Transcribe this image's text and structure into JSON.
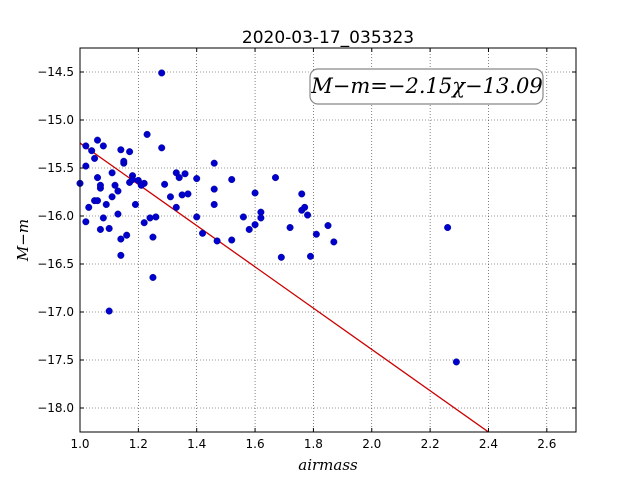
{
  "chart_data": {
    "type": "scatter",
    "title": "2020-03-17_035323",
    "xlabel": "airmass",
    "ylabel": "M−m",
    "xlim": [
      1.0,
      2.7
    ],
    "ylim": [
      -18.25,
      -14.25
    ],
    "y_inverted": true,
    "grid": true,
    "x_ticks": [
      1.0,
      1.2,
      1.4,
      1.6,
      1.8,
      2.0,
      2.2,
      2.4,
      2.6
    ],
    "x_tick_labels": [
      "1.0",
      "1.2",
      "1.4",
      "1.6",
      "1.8",
      "2.0",
      "2.2",
      "2.4",
      "2.6"
    ],
    "y_ticks": [
      -14.5,
      -15.0,
      -15.5,
      -16.0,
      -16.5,
      -17.0,
      -17.5,
      -18.0
    ],
    "y_tick_labels": [
      "−14.5",
      "−15.0",
      "−15.5",
      "−16.0",
      "−16.5",
      "−17.0",
      "−17.5",
      "−18.0"
    ],
    "annotation": {
      "text": "M−m=−2.15χ−13.09",
      "position": "top-right"
    },
    "fit_line": {
      "slope": -2.15,
      "intercept": -13.09,
      "color": "#cc0000"
    },
    "marker_color": "#0000cc",
    "points": [
      {
        "x": 1.0,
        "y": -15.66
      },
      {
        "x": 1.02,
        "y": -15.27
      },
      {
        "x": 1.02,
        "y": -15.48
      },
      {
        "x": 1.03,
        "y": -15.91
      },
      {
        "x": 1.02,
        "y": -16.06
      },
      {
        "x": 1.04,
        "y": -15.32
      },
      {
        "x": 1.05,
        "y": -15.4
      },
      {
        "x": 1.05,
        "y": -15.84
      },
      {
        "x": 1.06,
        "y": -15.21
      },
      {
        "x": 1.06,
        "y": -15.6
      },
      {
        "x": 1.07,
        "y": -15.71
      },
      {
        "x": 1.07,
        "y": -15.68
      },
      {
        "x": 1.06,
        "y": -15.84
      },
      {
        "x": 1.07,
        "y": -16.14
      },
      {
        "x": 1.08,
        "y": -15.27
      },
      {
        "x": 1.08,
        "y": -16.02
      },
      {
        "x": 1.09,
        "y": -15.88
      },
      {
        "x": 1.1,
        "y": -16.13
      },
      {
        "x": 1.1,
        "y": -16.99
      },
      {
        "x": 1.11,
        "y": -15.55
      },
      {
        "x": 1.11,
        "y": -15.8
      },
      {
        "x": 1.12,
        "y": -15.68
      },
      {
        "x": 1.13,
        "y": -15.74
      },
      {
        "x": 1.13,
        "y": -15.98
      },
      {
        "x": 1.14,
        "y": -16.24
      },
      {
        "x": 1.14,
        "y": -16.41
      },
      {
        "x": 1.14,
        "y": -15.31
      },
      {
        "x": 1.15,
        "y": -15.45
      },
      {
        "x": 1.15,
        "y": -15.43
      },
      {
        "x": 1.16,
        "y": -16.2
      },
      {
        "x": 1.17,
        "y": -15.33
      },
      {
        "x": 1.17,
        "y": -15.65
      },
      {
        "x": 1.18,
        "y": -15.58
      },
      {
        "x": 1.18,
        "y": -15.62
      },
      {
        "x": 1.19,
        "y": -15.88
      },
      {
        "x": 1.2,
        "y": -15.63
      },
      {
        "x": 1.22,
        "y": -15.66
      },
      {
        "x": 1.21,
        "y": -15.68
      },
      {
        "x": 1.22,
        "y": -16.07
      },
      {
        "x": 1.23,
        "y": -15.15
      },
      {
        "x": 1.24,
        "y": -16.02
      },
      {
        "x": 1.25,
        "y": -16.22
      },
      {
        "x": 1.26,
        "y": -16.01
      },
      {
        "x": 1.25,
        "y": -16.64
      },
      {
        "x": 1.28,
        "y": -14.51
      },
      {
        "x": 1.28,
        "y": -15.29
      },
      {
        "x": 1.29,
        "y": -15.67
      },
      {
        "x": 1.31,
        "y": -15.8
      },
      {
        "x": 1.33,
        "y": -15.91
      },
      {
        "x": 1.33,
        "y": -15.55
      },
      {
        "x": 1.34,
        "y": -15.6
      },
      {
        "x": 1.35,
        "y": -15.78
      },
      {
        "x": 1.36,
        "y": -15.56
      },
      {
        "x": 1.37,
        "y": -15.77
      },
      {
        "x": 1.4,
        "y": -15.61
      },
      {
        "x": 1.4,
        "y": -16.01
      },
      {
        "x": 1.42,
        "y": -16.18
      },
      {
        "x": 1.46,
        "y": -15.45
      },
      {
        "x": 1.46,
        "y": -15.72
      },
      {
        "x": 1.46,
        "y": -15.88
      },
      {
        "x": 1.47,
        "y": -16.26
      },
      {
        "x": 1.52,
        "y": -15.62
      },
      {
        "x": 1.52,
        "y": -16.25
      },
      {
        "x": 1.56,
        "y": -16.01
      },
      {
        "x": 1.58,
        "y": -16.14
      },
      {
        "x": 1.6,
        "y": -15.76
      },
      {
        "x": 1.6,
        "y": -16.09
      },
      {
        "x": 1.62,
        "y": -15.96
      },
      {
        "x": 1.62,
        "y": -16.02
      },
      {
        "x": 1.67,
        "y": -15.6
      },
      {
        "x": 1.69,
        "y": -16.43
      },
      {
        "x": 1.72,
        "y": -16.12
      },
      {
        "x": 1.76,
        "y": -15.77
      },
      {
        "x": 1.76,
        "y": -15.94
      },
      {
        "x": 1.77,
        "y": -15.91
      },
      {
        "x": 1.78,
        "y": -15.99
      },
      {
        "x": 1.79,
        "y": -16.42
      },
      {
        "x": 1.81,
        "y": -16.19
      },
      {
        "x": 1.85,
        "y": -16.1
      },
      {
        "x": 1.87,
        "y": -16.27
      },
      {
        "x": 2.26,
        "y": -16.12
      },
      {
        "x": 2.29,
        "y": -17.52
      }
    ]
  }
}
